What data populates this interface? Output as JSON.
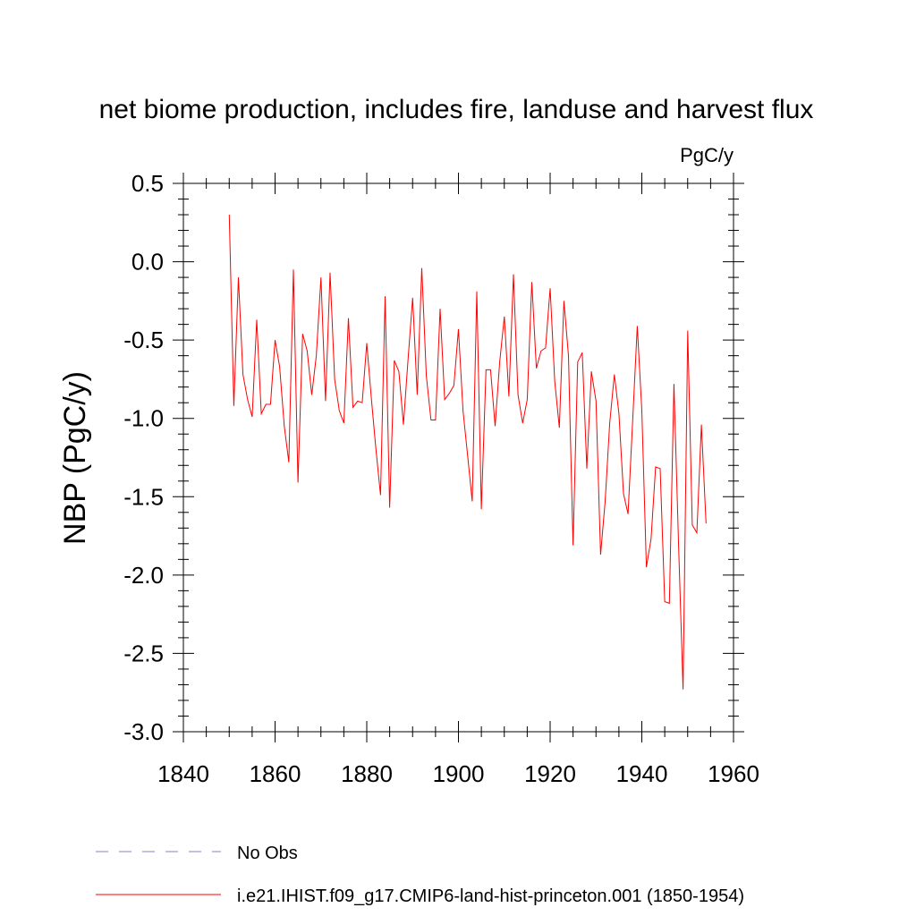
{
  "chart_data": {
    "type": "line",
    "title": "net biome production, includes fire, landuse and harvest flux",
    "units": "PgC/y",
    "ylabel": "NBP  (PgC/y)",
    "xlabel": "",
    "xlim": [
      1840,
      1960
    ],
    "ylim": [
      -3.0,
      0.5
    ],
    "x_ticks": [
      1840,
      1860,
      1880,
      1900,
      1920,
      1940,
      1960
    ],
    "x_tick_labels": [
      "1840",
      "1860",
      "1880",
      "1900",
      "1920",
      "1940",
      "1960"
    ],
    "y_ticks": [
      0.5,
      0.0,
      -0.5,
      -1.0,
      -1.5,
      -2.0,
      -2.5,
      -3.0
    ],
    "y_tick_labels": [
      "0.5",
      "0.0",
      "-0.5",
      "-1.0",
      "-1.5",
      "-2.0",
      "-2.5",
      "-3.0"
    ],
    "grid": false,
    "legend_position": "bottom",
    "legend": [
      {
        "name": "No Obs",
        "color": "#8080c0",
        "style": "dashed"
      },
      {
        "name": "i.e21.IHIST.f09_g17.CMIP6-land-hist-princeton.001 (1850-1954)",
        "color": "#ff0000",
        "style": "solid"
      }
    ],
    "series": [
      {
        "name": "i.e21.IHIST.f09_g17.CMIP6-land-hist-princeton.001 (1850-1954)",
        "color": "#ff0000",
        "x": [
          1850,
          1851,
          1852,
          1853,
          1854,
          1855,
          1856,
          1857,
          1858,
          1859,
          1860,
          1861,
          1862,
          1863,
          1864,
          1865,
          1866,
          1867,
          1868,
          1869,
          1870,
          1871,
          1872,
          1873,
          1874,
          1875,
          1876,
          1877,
          1878,
          1879,
          1880,
          1881,
          1882,
          1883,
          1884,
          1885,
          1886,
          1887,
          1888,
          1889,
          1890,
          1891,
          1892,
          1893,
          1894,
          1895,
          1896,
          1897,
          1898,
          1899,
          1900,
          1901,
          1902,
          1903,
          1904,
          1905,
          1906,
          1907,
          1908,
          1909,
          1910,
          1911,
          1912,
          1913,
          1914,
          1915,
          1916,
          1917,
          1918,
          1919,
          1920,
          1921,
          1922,
          1923,
          1924,
          1925,
          1926,
          1927,
          1928,
          1929,
          1930,
          1931,
          1932,
          1933,
          1934,
          1935,
          1936,
          1937,
          1938,
          1939,
          1940,
          1941,
          1942,
          1943,
          1944,
          1945,
          1946,
          1947,
          1948,
          1949,
          1950,
          1951,
          1952,
          1953,
          1954
        ],
        "values": [
          0.3,
          -0.92,
          -0.1,
          -0.72,
          -0.88,
          -0.99,
          -0.37,
          -0.97,
          -0.91,
          -0.91,
          -0.5,
          -0.67,
          -1.05,
          -1.28,
          -0.05,
          -1.41,
          -0.46,
          -0.57,
          -0.85,
          -0.6,
          -0.1,
          -0.89,
          -0.07,
          -0.75,
          -0.95,
          -1.03,
          -0.36,
          -0.93,
          -0.89,
          -0.9,
          -0.52,
          -0.87,
          -1.2,
          -1.49,
          -0.22,
          -1.57,
          -0.63,
          -0.7,
          -1.04,
          -0.63,
          -0.23,
          -0.85,
          -0.04,
          -0.73,
          -1.01,
          -1.01,
          -0.3,
          -0.88,
          -0.84,
          -0.79,
          -0.43,
          -0.95,
          -1.24,
          -1.53,
          -0.19,
          -1.58,
          -0.69,
          -0.69,
          -1.05,
          -0.64,
          -0.35,
          -0.86,
          -0.08,
          -0.85,
          -1.03,
          -0.88,
          -0.13,
          -0.68,
          -0.57,
          -0.55,
          -0.17,
          -0.76,
          -1.06,
          -0.25,
          -0.6,
          -1.81,
          -0.64,
          -0.58,
          -1.32,
          -0.7,
          -0.89,
          -1.87,
          -1.53,
          -1.03,
          -0.72,
          -0.97,
          -1.48,
          -1.61,
          -1.01,
          -0.41,
          -0.95,
          -1.95,
          -1.77,
          -1.31,
          -1.32,
          -2.17,
          -2.18,
          -0.78,
          -1.79,
          -2.73,
          -0.44,
          -1.68,
          -1.73,
          -1.04,
          -1.67
        ]
      }
    ]
  }
}
